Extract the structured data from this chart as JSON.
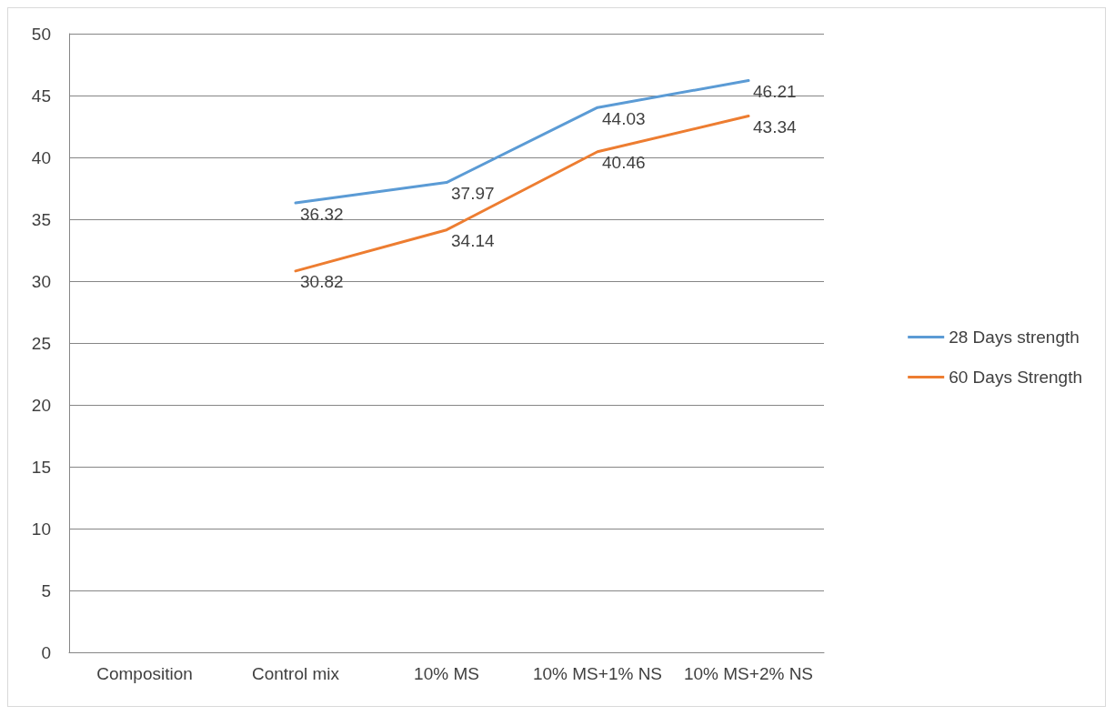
{
  "chart_data": {
    "type": "line",
    "categories": [
      "Composition",
      "Control mix",
      "10% MS",
      "10% MS+1% NS",
      "10% MS+2% NS"
    ],
    "series": [
      {
        "name": "28 Days strength",
        "color": "#5b9bd5",
        "values": [
          null,
          36.32,
          37.97,
          44.03,
          46.21
        ]
      },
      {
        "name": "60 Days Strength",
        "color": "#ed7d31",
        "values": [
          null,
          30.82,
          34.14,
          40.46,
          43.34
        ]
      }
    ],
    "ylim": [
      0,
      50
    ],
    "yticks": [
      0,
      5,
      10,
      15,
      20,
      25,
      30,
      35,
      40,
      45,
      50
    ],
    "grid": "y",
    "legend": "right",
    "data_labels": true,
    "line_style": "solid"
  }
}
